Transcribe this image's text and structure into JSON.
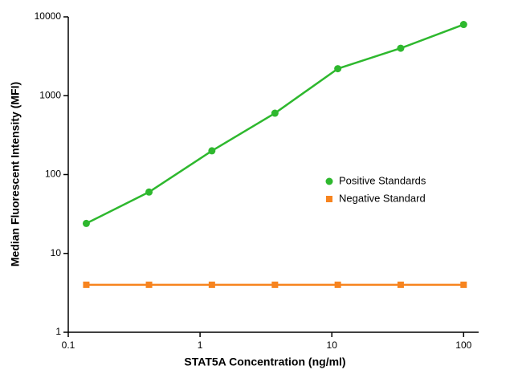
{
  "chart_data": {
    "type": "line",
    "x_label": "STAT5A Concentration (ng/ml)",
    "y_label": "Median Fluorescent Intensity (MFI)",
    "x": [
      0.137,
      0.41,
      1.23,
      3.7,
      11.1,
      33.3,
      100
    ],
    "series": [
      {
        "name": "Positive Standards",
        "color": "#2eb82e",
        "marker": "circle",
        "values": [
          24,
          60,
          200,
          600,
          2200,
          4000,
          8000
        ]
      },
      {
        "name": "Negative Standard",
        "color": "#f7841f",
        "marker": "square",
        "values": [
          4,
          4,
          4,
          4,
          4,
          4,
          4
        ]
      }
    ],
    "xlim": [
      0.1,
      130
    ],
    "xticks": [
      0.1,
      1,
      10,
      100
    ],
    "ylim": [
      1,
      10000
    ],
    "yticks": [
      1,
      10,
      100,
      1000,
      10000
    ],
    "xscale": "log",
    "yscale": "log",
    "grid": false,
    "legend": "right"
  }
}
